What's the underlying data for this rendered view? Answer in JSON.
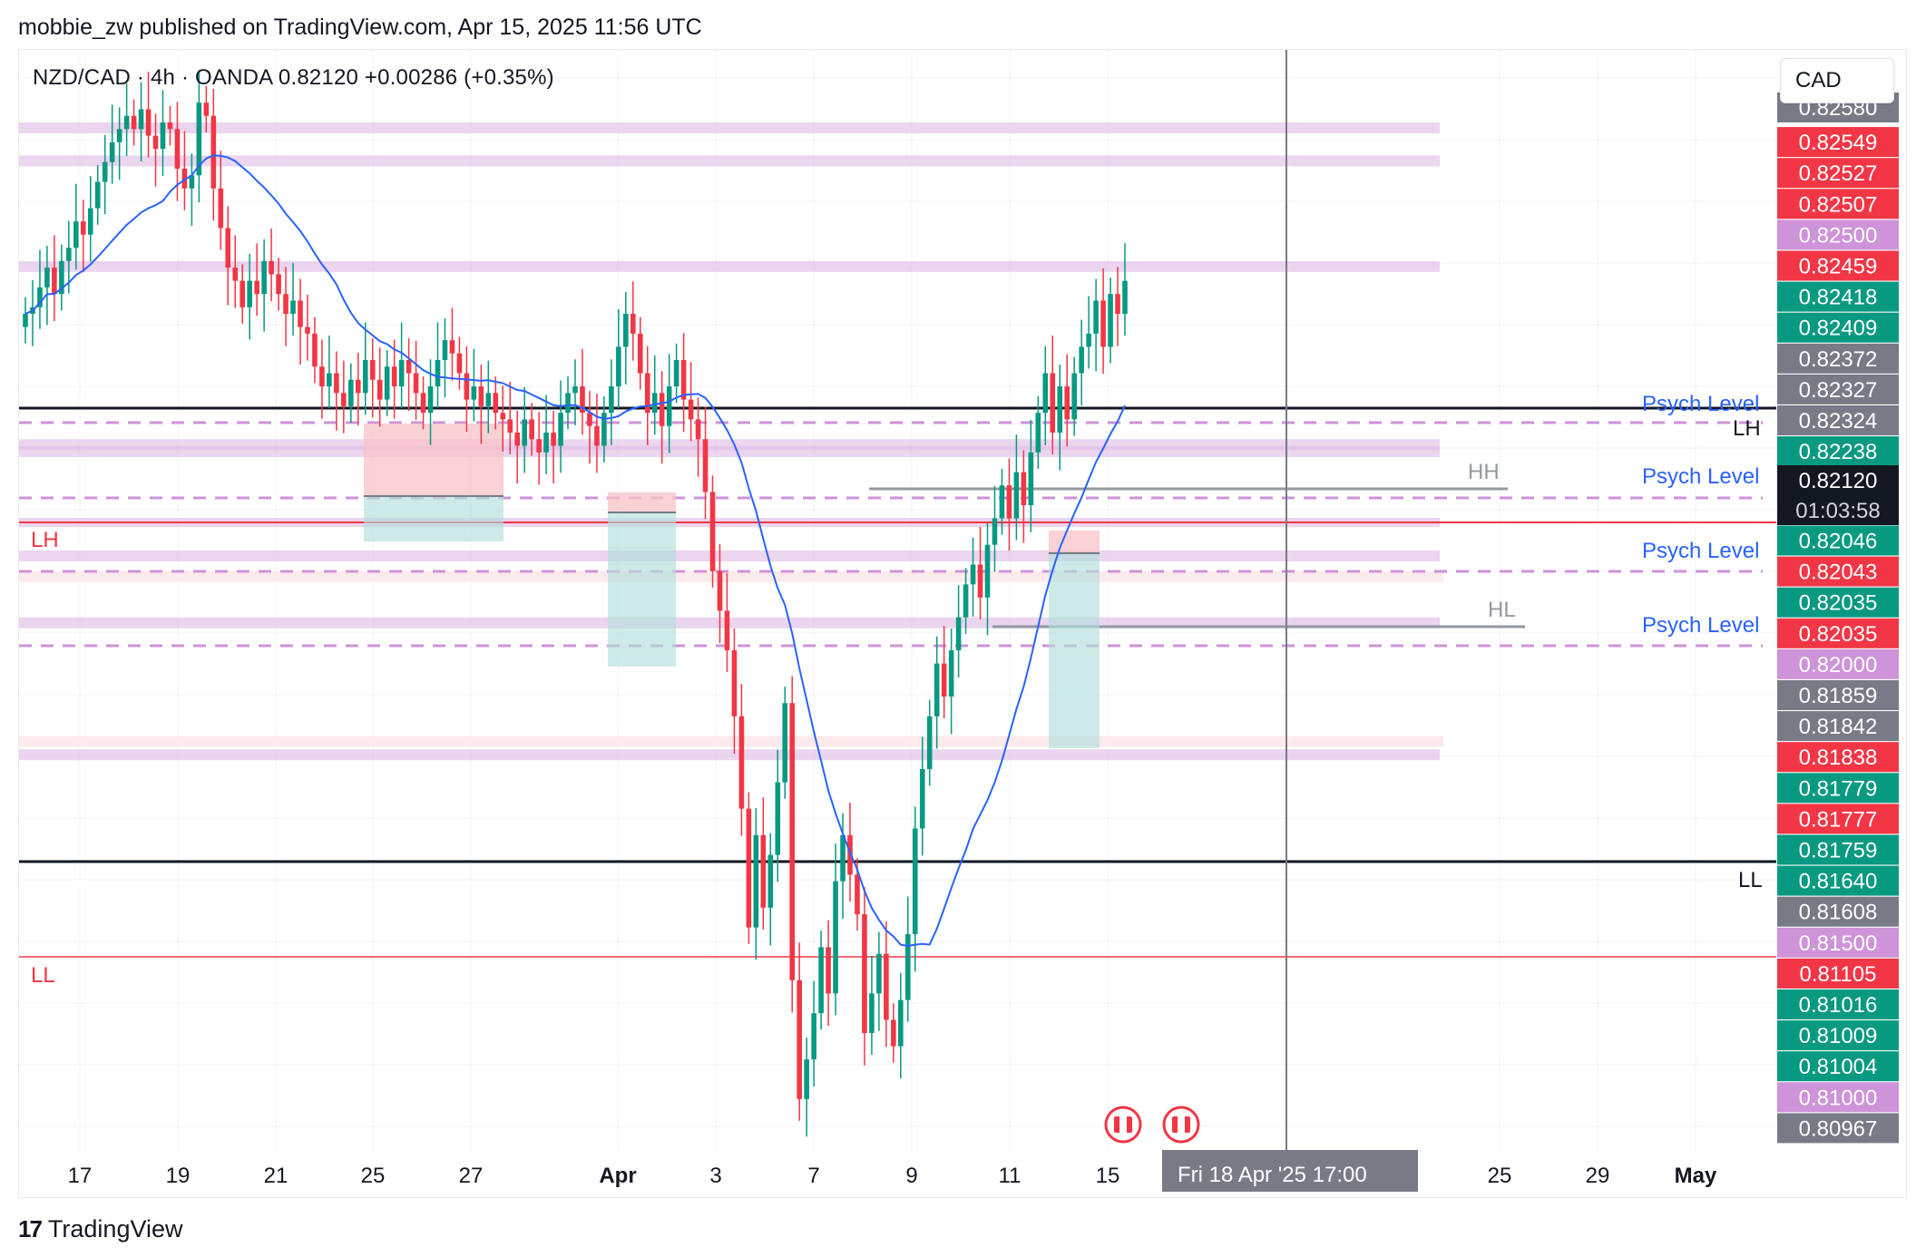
{
  "header": {
    "published_by": "mobbie_zw published on TradingView.com, Apr 15, 2025 11:56 UTC",
    "symbol_line": "NZD/CAD · 4h · OANDA  0.82120  +0.00286 (+0.35%)",
    "currency_button": "CAD"
  },
  "footer": {
    "logo_text": "TradingView",
    "crosshair_date": "Fri 18 Apr '25   17:00"
  },
  "colors": {
    "up": "#089981",
    "down": "#f23645",
    "ma": "#2962ff",
    "zone_purple": "#e1bee7",
    "zone_pink": "#fde8ea",
    "psych_dash": "#ce93d8",
    "black_line": "#131722",
    "red_line": "#f23645"
  },
  "annotations": {
    "psych_level": "Psych Level",
    "lh": "LH",
    "ll": "LL",
    "hh": "HH",
    "hl": "HL"
  },
  "chart_data": {
    "type": "candlestick",
    "title": "NZD/CAD · 4h · OANDA",
    "last_price": 0.8212,
    "change": "+0.00286 (+0.35%)",
    "countdown": "01:03:58",
    "x_ticks": [
      "17",
      "19",
      "21",
      "25",
      "27",
      "Apr",
      "3",
      "7",
      "9",
      "11",
      "15",
      "25",
      "29",
      "May"
    ],
    "y_axis_labels": [
      {
        "value": "0.82580",
        "color": "#787b86"
      },
      {
        "value": "0.82549",
        "color": "#f23645"
      },
      {
        "value": "0.82527",
        "color": "#f23645"
      },
      {
        "value": "0.82507",
        "color": "#f23645"
      },
      {
        "value": "0.82500",
        "color": "#ce93d8"
      },
      {
        "value": "0.82459",
        "color": "#f23645"
      },
      {
        "value": "0.82418",
        "color": "#089981"
      },
      {
        "value": "0.82409",
        "color": "#089981"
      },
      {
        "value": "0.82372",
        "color": "#787b86"
      },
      {
        "value": "0.82327",
        "color": "#787b86"
      },
      {
        "value": "0.82324",
        "color": "#787b86"
      },
      {
        "value": "0.82238",
        "color": "#089981"
      },
      {
        "value": "0.82120",
        "color": "#131722"
      },
      {
        "value": "0.82046",
        "color": "#089981"
      },
      {
        "value": "0.82043",
        "color": "#f23645"
      },
      {
        "value": "0.82035",
        "color": "#089981"
      },
      {
        "value": "0.82035",
        "color": "#f23645"
      },
      {
        "value": "0.82000",
        "color": "#ce93d8"
      },
      {
        "value": "0.81859",
        "color": "#787b86"
      },
      {
        "value": "0.81842",
        "color": "#787b86"
      },
      {
        "value": "0.81838",
        "color": "#f23645"
      },
      {
        "value": "0.81779",
        "color": "#089981"
      },
      {
        "value": "0.81777",
        "color": "#f23645"
      },
      {
        "value": "0.81759",
        "color": "#089981"
      },
      {
        "value": "0.81640",
        "color": "#089981"
      },
      {
        "value": "0.81608",
        "color": "#787b86"
      },
      {
        "value": "0.81500",
        "color": "#ce93d8"
      },
      {
        "value": "0.81105",
        "color": "#f23645"
      },
      {
        "value": "0.81016",
        "color": "#089981"
      },
      {
        "value": "0.81009",
        "color": "#089981"
      },
      {
        "value": "0.81004",
        "color": "#089981"
      },
      {
        "value": "0.81000",
        "color": "#ce93d8"
      },
      {
        "value": "0.80967",
        "color": "#787b86"
      }
    ],
    "closes": [
      0.8221,
      0.8222,
      0.8225,
      0.8228,
      0.8224,
      0.8229,
      0.8231,
      0.8235,
      0.8233,
      0.8237,
      0.8241,
      0.8244,
      0.8247,
      0.8249,
      0.8251,
      0.8249,
      0.8252,
      0.8248,
      0.8246,
      0.825,
      0.8249,
      0.8243,
      0.824,
      0.8242,
      0.8253,
      0.8251,
      0.824,
      0.8234,
      0.8228,
      0.8226,
      0.8222,
      0.8226,
      0.8224,
      0.8229,
      0.8227,
      0.8224,
      0.8221,
      0.8223,
      0.8219,
      0.8218,
      0.8213,
      0.821,
      0.8212,
      0.8209,
      0.8207,
      0.8211,
      0.8209,
      0.8214,
      0.8211,
      0.8208,
      0.8213,
      0.821,
      0.8214,
      0.8212,
      0.8209,
      0.8206,
      0.821,
      0.8214,
      0.8217,
      0.8215,
      0.8212,
      0.8208,
      0.821,
      0.8207,
      0.8209,
      0.8206,
      0.8205,
      0.8203,
      0.8201,
      0.8205,
      0.8202,
      0.82,
      0.8203,
      0.8201,
      0.8206,
      0.8209,
      0.821,
      0.8206,
      0.8204,
      0.8201,
      0.8206,
      0.821,
      0.8216,
      0.8221,
      0.8218,
      0.8212,
      0.8206,
      0.8209,
      0.8204,
      0.821,
      0.8214,
      0.8208,
      0.8205,
      0.8202,
      0.8194,
      0.8182,
      0.8176,
      0.817,
      0.816,
      0.8146,
      0.8128,
      0.8142,
      0.8131,
      0.8139,
      0.815,
      0.8162,
      0.812,
      0.8102,
      0.8108,
      0.8115,
      0.8125,
      0.8118,
      0.8135,
      0.8142,
      0.8136,
      0.813,
      0.8112,
      0.8118,
      0.8124,
      0.8114,
      0.811,
      0.8117,
      0.8127,
      0.8143,
      0.8152,
      0.816,
      0.8168,
      0.8163,
      0.817,
      0.8175,
      0.818,
      0.8183,
      0.8178,
      0.8186,
      0.819,
      0.8195,
      0.819,
      0.8197,
      0.8192,
      0.82,
      0.8206,
      0.8212,
      0.8203,
      0.821,
      0.8205,
      0.8212,
      0.8216,
      0.8218,
      0.8223,
      0.8216,
      0.8224,
      0.8221,
      0.8226
    ],
    "ma_series": "20-period moving average (blue)",
    "horizontal_levels": [
      {
        "price": 0.823,
        "kind": "black-line"
      },
      {
        "price": 0.8163,
        "kind": "black-line"
      },
      {
        "price": 0.8208,
        "kind": "red-line"
      },
      {
        "price": 0.8136,
        "kind": "red-line"
      }
    ],
    "ylim": [
      0.8094,
      0.8261
    ]
  }
}
